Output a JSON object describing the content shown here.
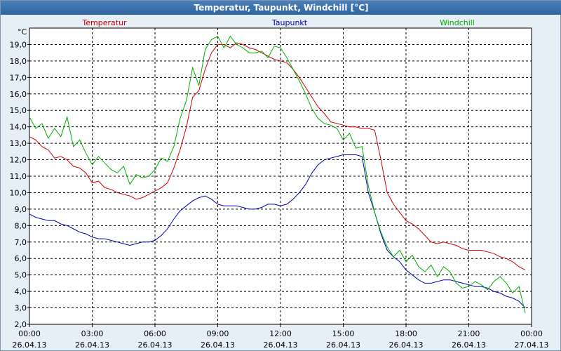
{
  "chart_data": {
    "type": "line",
    "title": "Temperatur, Taupunkt, Windchill [°C]",
    "ylabel": "°C",
    "xlabel": "",
    "ylim": [
      2.0,
      20.0
    ],
    "xlim": [
      0,
      24
    ],
    "grid": true,
    "y_ticks": [
      "2,0",
      "3,0",
      "4,0",
      "5,0",
      "6,0",
      "7,0",
      "8,0",
      "9,0",
      "10,0",
      "11,0",
      "12,0",
      "13,0",
      "14,0",
      "15,0",
      "16,0",
      "17,0",
      "18,0",
      "19,0"
    ],
    "x_ticks": [
      {
        "time": "00:00",
        "date": "26.04.13",
        "hour": 0
      },
      {
        "time": "03:00",
        "date": "26.04.13",
        "hour": 3
      },
      {
        "time": "06:00",
        "date": "26.04.13",
        "hour": 6
      },
      {
        "time": "09:00",
        "date": "26.04.13",
        "hour": 9
      },
      {
        "time": "12:00",
        "date": "26.04.13",
        "hour": 12
      },
      {
        "time": "15:00",
        "date": "26.04.13",
        "hour": 15
      },
      {
        "time": "18:00",
        "date": "26.04.13",
        "hour": 18
      },
      {
        "time": "21:00",
        "date": "26.04.13",
        "hour": 21
      },
      {
        "time": "00:00",
        "date": "27.04.13",
        "hour": 24
      }
    ],
    "series": [
      {
        "name": "Temperatur",
        "color": "#d00000",
        "x": [
          0,
          0.3,
          0.6,
          0.9,
          1.2,
          1.5,
          1.8,
          2.1,
          2.4,
          2.7,
          3.0,
          3.3,
          3.6,
          3.9,
          4.2,
          4.5,
          4.8,
          5.1,
          5.4,
          5.7,
          6.0,
          6.3,
          6.6,
          6.9,
          7.2,
          7.5,
          7.8,
          8.1,
          8.4,
          8.7,
          9.0,
          9.3,
          9.6,
          9.9,
          10.2,
          10.5,
          10.8,
          11.1,
          11.4,
          11.7,
          12.0,
          12.3,
          12.6,
          12.9,
          13.2,
          13.5,
          13.8,
          14.1,
          14.4,
          14.7,
          15.0,
          15.3,
          15.6,
          15.9,
          16.2,
          16.5,
          16.8,
          17.1,
          17.4,
          17.7,
          18.0,
          18.3,
          18.6,
          18.9,
          19.2,
          19.5,
          19.8,
          20.1,
          20.4,
          20.7,
          21.0,
          21.3,
          21.6,
          21.9,
          22.2,
          22.5,
          22.8,
          23.1,
          23.4,
          23.7
        ],
        "values": [
          13.4,
          13.2,
          12.8,
          12.6,
          12.1,
          12.2,
          12.0,
          11.6,
          11.5,
          11.2,
          10.6,
          10.7,
          10.3,
          10.2,
          10.0,
          9.9,
          9.8,
          9.6,
          9.7,
          9.9,
          10.1,
          10.3,
          10.6,
          11.5,
          12.6,
          14.0,
          15.8,
          16.2,
          17.5,
          18.5,
          19.0,
          19.0,
          18.8,
          19.1,
          19.0,
          18.8,
          18.7,
          18.5,
          18.3,
          18.1,
          18.0,
          17.9,
          17.5,
          17.0,
          16.4,
          15.8,
          15.2,
          14.8,
          14.3,
          14.2,
          14.1,
          14.0,
          14.0,
          13.9,
          13.9,
          13.8,
          12.0,
          10.0,
          9.3,
          8.8,
          8.3,
          8.1,
          7.8,
          7.4,
          7.0,
          6.9,
          7.0,
          6.9,
          6.8,
          6.6,
          6.5,
          6.5,
          6.5,
          6.4,
          6.3,
          6.1,
          6.0,
          5.8,
          5.5,
          5.3
        ]
      },
      {
        "name": "Taupunkt",
        "color": "#0000b0",
        "x": [
          0,
          0.3,
          0.6,
          0.9,
          1.2,
          1.5,
          1.8,
          2.1,
          2.4,
          2.7,
          3.0,
          3.3,
          3.6,
          3.9,
          4.2,
          4.5,
          4.8,
          5.1,
          5.4,
          5.7,
          6.0,
          6.3,
          6.6,
          6.9,
          7.2,
          7.5,
          7.8,
          8.1,
          8.4,
          8.7,
          9.0,
          9.3,
          9.6,
          9.9,
          10.2,
          10.5,
          10.8,
          11.1,
          11.4,
          11.7,
          12.0,
          12.3,
          12.6,
          12.9,
          13.2,
          13.5,
          13.8,
          14.1,
          14.4,
          14.7,
          15.0,
          15.3,
          15.6,
          15.9,
          16.2,
          16.5,
          16.8,
          17.1,
          17.4,
          17.7,
          18.0,
          18.3,
          18.6,
          18.9,
          19.2,
          19.5,
          19.8,
          20.1,
          20.4,
          20.7,
          21.0,
          21.3,
          21.6,
          21.9,
          22.2,
          22.5,
          22.8,
          23.1,
          23.4,
          23.7
        ],
        "values": [
          8.7,
          8.5,
          8.4,
          8.3,
          8.3,
          8.1,
          8.0,
          7.8,
          7.6,
          7.5,
          7.3,
          7.2,
          7.2,
          7.1,
          7.0,
          6.9,
          6.8,
          6.9,
          7.0,
          7.0,
          7.1,
          7.4,
          7.8,
          8.4,
          8.9,
          9.2,
          9.5,
          9.7,
          9.8,
          9.6,
          9.3,
          9.2,
          9.2,
          9.2,
          9.1,
          9.0,
          9.0,
          9.1,
          9.3,
          9.3,
          9.2,
          9.3,
          9.6,
          10.0,
          10.5,
          11.2,
          11.7,
          12.0,
          12.1,
          12.2,
          12.3,
          12.3,
          12.3,
          12.2,
          10.0,
          8.8,
          7.5,
          6.5,
          6.1,
          5.8,
          5.3,
          5.0,
          4.7,
          4.5,
          4.5,
          4.6,
          4.7,
          4.7,
          4.6,
          4.5,
          4.4,
          4.3,
          4.3,
          4.2,
          4.0,
          3.9,
          3.7,
          3.6,
          3.4,
          3.0
        ]
      },
      {
        "name": "Windchill",
        "color": "#00b000",
        "x": [
          0,
          0.3,
          0.6,
          0.9,
          1.2,
          1.5,
          1.8,
          2.1,
          2.4,
          2.7,
          3.0,
          3.3,
          3.6,
          3.9,
          4.2,
          4.5,
          4.8,
          5.1,
          5.4,
          5.7,
          6.0,
          6.3,
          6.6,
          6.9,
          7.2,
          7.5,
          7.8,
          8.1,
          8.4,
          8.7,
          9.0,
          9.3,
          9.6,
          9.9,
          10.2,
          10.5,
          10.8,
          11.1,
          11.4,
          11.7,
          12.0,
          12.3,
          12.6,
          12.9,
          13.2,
          13.5,
          13.8,
          14.1,
          14.4,
          14.7,
          15.0,
          15.3,
          15.6,
          15.9,
          16.2,
          16.5,
          16.8,
          17.1,
          17.4,
          17.7,
          18.0,
          18.3,
          18.6,
          18.9,
          19.2,
          19.5,
          19.8,
          20.1,
          20.4,
          20.7,
          21.0,
          21.3,
          21.6,
          21.9,
          22.2,
          22.5,
          22.8,
          23.1,
          23.4,
          23.7
        ],
        "values": [
          14.6,
          13.9,
          14.2,
          13.3,
          13.9,
          13.4,
          14.6,
          12.8,
          13.2,
          12.4,
          11.7,
          12.2,
          11.8,
          11.4,
          11.2,
          11.6,
          10.5,
          11.1,
          10.9,
          11.0,
          11.4,
          12.1,
          11.9,
          12.8,
          14.5,
          15.6,
          17.6,
          16.5,
          18.7,
          19.3,
          19.5,
          18.8,
          19.5,
          19.0,
          18.8,
          18.5,
          18.5,
          18.6,
          18.2,
          18.9,
          18.8,
          18.2,
          17.5,
          16.8,
          16.0,
          15.1,
          14.5,
          14.2,
          14.1,
          13.9,
          13.2,
          13.6,
          12.7,
          12.8,
          10.4,
          8.8,
          7.6,
          6.7,
          6.1,
          6.5,
          5.8,
          6.2,
          5.5,
          5.2,
          5.6,
          4.9,
          5.5,
          5.2,
          4.5,
          4.2,
          4.3,
          4.6,
          4.4,
          4.1,
          4.6,
          4.9,
          4.5,
          3.9,
          4.3,
          2.7
        ]
      }
    ]
  }
}
